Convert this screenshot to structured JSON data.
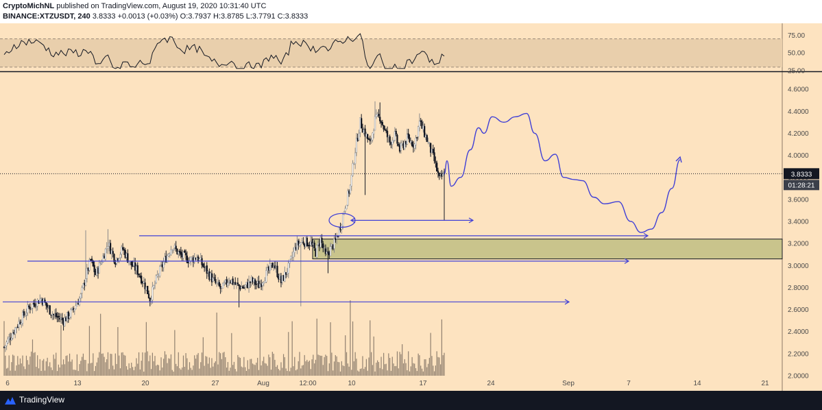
{
  "header": {
    "author": "CryptoMichNL",
    "published": "published on TradingView.com, August 19, 2020 10:31:40 UTC",
    "symbol": "BINANCE:XTZUSDT, 240",
    "last": "3.8333",
    "change": "+0.0013 (+0.03%)",
    "o_label": "O:",
    "o_value": "3.7937",
    "h_label": "H:",
    "h_value": "3.8785",
    "l_label": "L:",
    "l_value": "3.7791",
    "c_label": "C:",
    "c_value": "3.8333"
  },
  "footer": {
    "brand": "TradingView"
  },
  "colors": {
    "background": "#fde3c0",
    "candle": "#131722",
    "drawing": "#3f3fd6",
    "zone_fill": "#c9c48c",
    "rsi_band": "#e9cfac",
    "dark": "#131722"
  },
  "chart_data": [
    {
      "type": "line",
      "panel": "rsi",
      "y_ticks": [
        "75.00",
        "50.00",
        "25.00"
      ],
      "ylim": [
        25,
        90
      ],
      "band": [
        30,
        70
      ]
    },
    {
      "type": "candlestick",
      "panel": "price",
      "y_ticks": [
        "4.6000",
        "4.4000",
        "4.2000",
        "4.0000",
        "3.8000",
        "3.6000",
        "3.4000",
        "3.2000",
        "3.0000",
        "2.8000",
        "2.6000",
        "2.4000",
        "2.2000",
        "2.0000"
      ],
      "ylim": [
        2.0,
        4.75
      ],
      "x_ticks": [
        "6",
        "13",
        "20",
        "27",
        "Aug",
        "12:00",
        "10",
        "17",
        "24",
        "Sep",
        "7",
        "14",
        "21"
      ],
      "last_price_label": "3.8333",
      "countdown": "01:28:21",
      "last_price": 3.8333,
      "support_zone": [
        3.06,
        3.24
      ],
      "horizontal_rays": [
        2.67,
        3.04,
        3.27,
        3.41
      ]
    }
  ]
}
